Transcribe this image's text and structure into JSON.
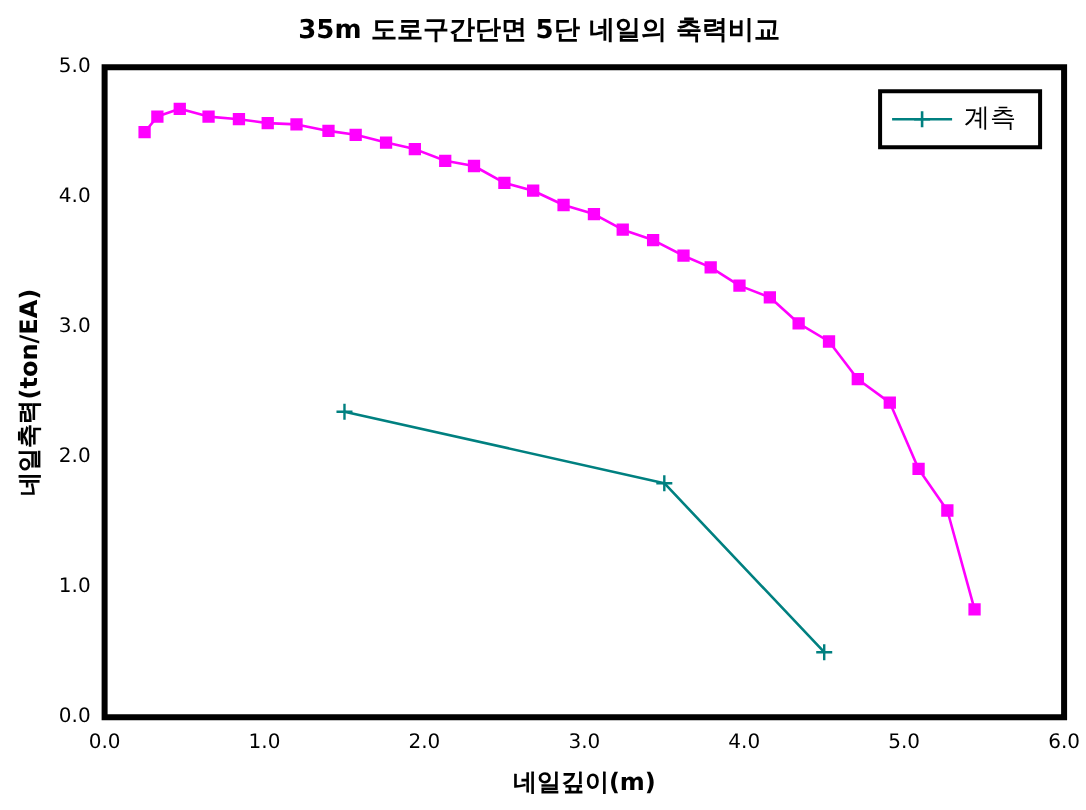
{
  "chart_data": {
    "type": "line",
    "title": "35m 도로구간단면 5단 네일의 축력비교",
    "xlabel": "네일깊이(m)",
    "ylabel": "네일축력(ton/EA)",
    "xlim": [
      0,
      6
    ],
    "xticks": [
      {
        "value": 0,
        "label": "0.0"
      },
      {
        "value": 1,
        "label": "1.0"
      },
      {
        "value": 2,
        "label": "2.0"
      },
      {
        "value": 3,
        "label": "3.0"
      },
      {
        "value": 4,
        "label": "4.0"
      },
      {
        "value": 5,
        "label": "5.0"
      },
      {
        "value": 6,
        "label": "6.0"
      }
    ],
    "ylim": [
      0,
      5
    ],
    "yticks": [
      {
        "value": 0,
        "label": "0.0"
      },
      {
        "value": 1,
        "label": "1.0"
      },
      {
        "value": 2,
        "label": "2.0"
      },
      {
        "value": 3,
        "label": "3.0"
      },
      {
        "value": 4,
        "label": "4.0"
      },
      {
        "value": 5,
        "label": "5.0"
      }
    ],
    "grid": false,
    "legend": "top right",
    "series": [
      {
        "name": "계측",
        "color": "#008080",
        "marker": "cross",
        "x": [
          1.5,
          3.5,
          4.5
        ],
        "values": [
          2.35,
          1.8,
          0.5
        ]
      },
      {
        "color": "#ff00ff",
        "marker": "square",
        "x": [
          0.25,
          0.33,
          0.47,
          0.65,
          0.84,
          1.02,
          1.2,
          1.4,
          1.57,
          1.76,
          1.94,
          2.13,
          2.31,
          2.5,
          2.68,
          2.87,
          3.06,
          3.24,
          3.43,
          3.62,
          3.79,
          3.97,
          4.16,
          4.34,
          4.53,
          4.71,
          4.91,
          5.09,
          5.27,
          5.44
        ],
        "values": [
          4.5,
          4.62,
          4.68,
          4.62,
          4.6,
          4.57,
          4.56,
          4.51,
          4.48,
          4.42,
          4.37,
          4.28,
          4.24,
          4.11,
          4.05,
          3.94,
          3.87,
          3.75,
          3.67,
          3.55,
          3.46,
          3.32,
          3.23,
          3.03,
          2.89,
          2.6,
          2.42,
          1.91,
          1.59,
          0.83
        ]
      }
    ]
  }
}
